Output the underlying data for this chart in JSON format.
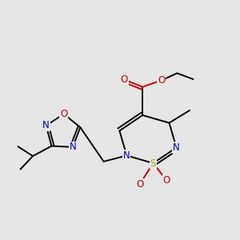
{
  "background_color": "#e6e6e6",
  "fig_width": 3.0,
  "fig_height": 3.0,
  "dpi": 100,
  "bond_lw": 1.4,
  "font_size": 8.5,
  "atom_colors": {
    "C": "#000000",
    "N": "#0000cc",
    "O": "#cc0000",
    "S": "#aaaa00"
  }
}
